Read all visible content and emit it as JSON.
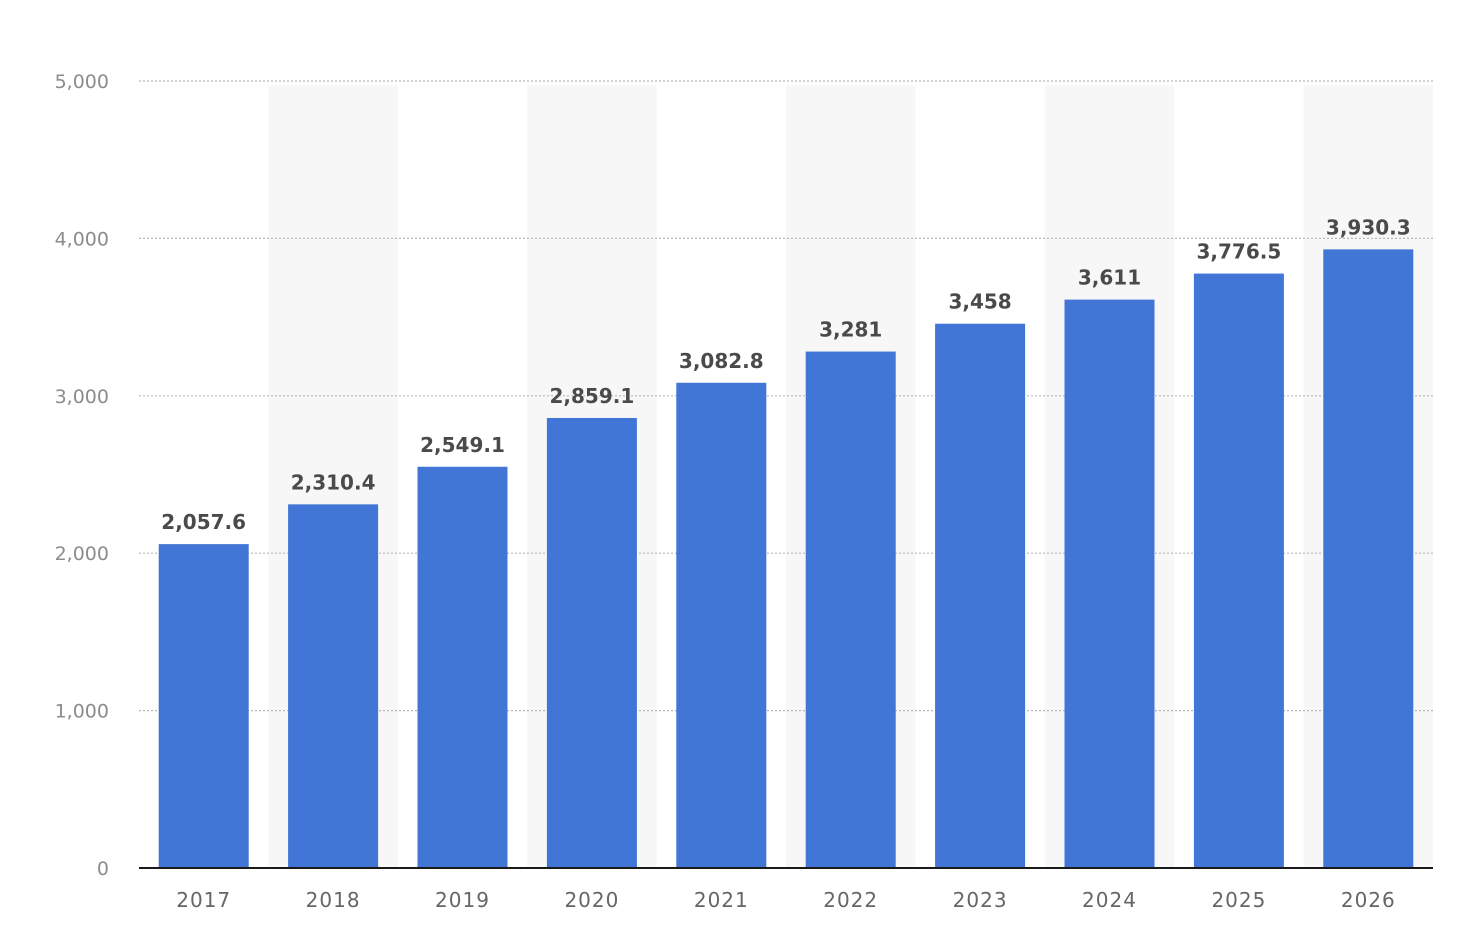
{
  "chart_data": {
    "type": "bar",
    "categories": [
      "2017",
      "2018",
      "2019",
      "2020",
      "2021",
      "2022",
      "2023",
      "2024",
      "2025",
      "2026"
    ],
    "values": [
      2057.6,
      2310.4,
      2549.1,
      2859.1,
      3082.8,
      3281,
      3458,
      3611,
      3776.5,
      3930.3
    ],
    "value_labels": [
      "2,057.6",
      "2,310.4",
      "2,549.1",
      "2,859.1",
      "3,082.8",
      "3,281",
      "3,458",
      "3,611",
      "3,776.5",
      "3,930.3"
    ],
    "y_ticks": [
      0,
      1000,
      2000,
      3000,
      4000,
      5000
    ],
    "y_tick_labels": [
      "0",
      "1,000",
      "2,000",
      "3,000",
      "4,000",
      "5,000"
    ],
    "ylim": [
      0,
      5000
    ],
    "grid": true,
    "title": "",
    "xlabel": "",
    "ylabel": "",
    "colors": {
      "bar": "#4175d6",
      "band": "#f7f7f7",
      "grid": "#b8b8b8",
      "axis": "#1a1a1a"
    }
  }
}
